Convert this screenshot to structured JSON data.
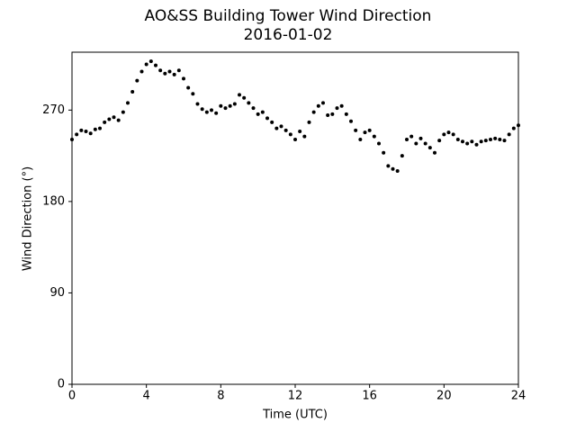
{
  "chart_data": {
    "type": "scatter",
    "title": "AO&SS Building Tower Wind Direction",
    "subtitle": "2016-01-02",
    "x_label": "Time (UTC)",
    "y_label": "Wind Direction (°)",
    "color": "#000000",
    "x": [
      0,
      0.25,
      0.5,
      0.75,
      1,
      1.25,
      1.5,
      1.75,
      2,
      2.25,
      2.5,
      2.75,
      3,
      3.25,
      3.5,
      3.75,
      4,
      4.25,
      4.5,
      4.75,
      5,
      5.25,
      5.5,
      5.75,
      6,
      6.25,
      6.5,
      6.75,
      7,
      7.25,
      7.5,
      7.75,
      8,
      8.25,
      8.5,
      8.75,
      9,
      9.25,
      9.5,
      9.75,
      10,
      10.25,
      10.5,
      10.75,
      11,
      11.25,
      11.5,
      11.75,
      12,
      12.25,
      12.5,
      12.75,
      13,
      13.25,
      13.5,
      13.75,
      14,
      14.25,
      14.5,
      14.75,
      15,
      15.25,
      15.5,
      15.75,
      16,
      16.25,
      16.5,
      16.75,
      17,
      17.25,
      17.5,
      17.75,
      18,
      18.25,
      18.5,
      18.75,
      19,
      19.25,
      19.5,
      19.75,
      20,
      20.25,
      20.5,
      20.75,
      21,
      21.25,
      21.5,
      21.75,
      22,
      22.25,
      22.5,
      22.75,
      23,
      23.25,
      23.5,
      23.75,
      24
    ],
    "values": [
      241,
      246,
      250,
      249,
      247,
      251,
      252,
      258,
      261,
      263,
      260,
      268,
      277,
      288,
      299,
      308,
      315,
      318,
      314,
      309,
      306,
      308,
      305,
      309,
      301,
      292,
      286,
      276,
      271,
      268,
      270,
      267,
      274,
      272,
      274,
      276,
      285,
      282,
      277,
      272,
      266,
      268,
      262,
      258,
      252,
      254,
      250,
      246,
      241,
      249,
      244,
      258,
      268,
      274,
      277,
      265,
      266,
      272,
      274,
      266,
      259,
      250,
      241,
      248,
      250,
      244,
      237,
      228,
      215,
      212,
      210,
      225,
      241,
      244,
      237,
      242,
      237,
      233,
      228,
      240,
      246,
      248,
      246,
      241,
      239,
      237,
      239,
      236,
      239,
      240,
      241,
      242,
      241,
      240,
      246,
      252,
      255
    ],
    "xlim": [
      0,
      24
    ],
    "xticks": [
      0,
      4,
      8,
      12,
      16,
      20,
      24
    ],
    "ylim": [
      0,
      327
    ],
    "yticks": [
      0,
      90,
      180,
      270
    ]
  }
}
